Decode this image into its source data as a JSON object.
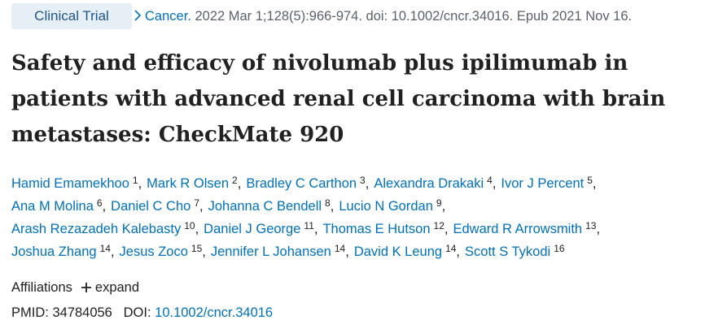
{
  "badge": "Clinical Trial",
  "citation": {
    "journal": "Cancer.",
    "details": "2022 Mar 1;128(5):966-974. doi: 10.1002/cncr.34016. Epub 2021 Nov 16."
  },
  "title": "Safety and efficacy of nivolumab plus ipilimumab in patients with advanced renal cell carcinoma with brain metastases: CheckMate 920",
  "author_separator": ",",
  "authors": [
    [
      {
        "name": "Hamid Emamekhoo",
        "aff": "1"
      },
      {
        "name": "Mark R Olsen",
        "aff": "2"
      },
      {
        "name": "Bradley C Carthon",
        "aff": "3"
      },
      {
        "name": "Alexandra Drakaki",
        "aff": "4"
      },
      {
        "name": "Ivor J Percent",
        "aff": "5"
      }
    ],
    [
      {
        "name": "Ana M Molina",
        "aff": "6"
      },
      {
        "name": "Daniel C Cho",
        "aff": "7"
      },
      {
        "name": "Johanna C Bendell",
        "aff": "8"
      },
      {
        "name": "Lucio N Gordan",
        "aff": "9"
      }
    ],
    [
      {
        "name": "Arash Rezazadeh Kalebasty",
        "aff": "10"
      },
      {
        "name": "Daniel J George",
        "aff": "11"
      },
      {
        "name": "Thomas E Hutson",
        "aff": "12"
      },
      {
        "name": "Edward R Arrowsmith",
        "aff": "13"
      }
    ],
    [
      {
        "name": "Joshua Zhang",
        "aff": "14"
      },
      {
        "name": "Jesus Zoco",
        "aff": "15"
      },
      {
        "name": "Jennifer L Johansen",
        "aff": "14"
      },
      {
        "name": "David K Leung",
        "aff": "14"
      },
      {
        "name": "Scott S Tykodi",
        "aff": "16"
      }
    ]
  ],
  "affiliations": {
    "label": "Affiliations",
    "expand": "expand"
  },
  "identifiers": {
    "pmid_label": "PMID:",
    "pmid": "34784056",
    "doi_label": "DOI:",
    "doi": "10.1002/cncr.34016"
  }
}
